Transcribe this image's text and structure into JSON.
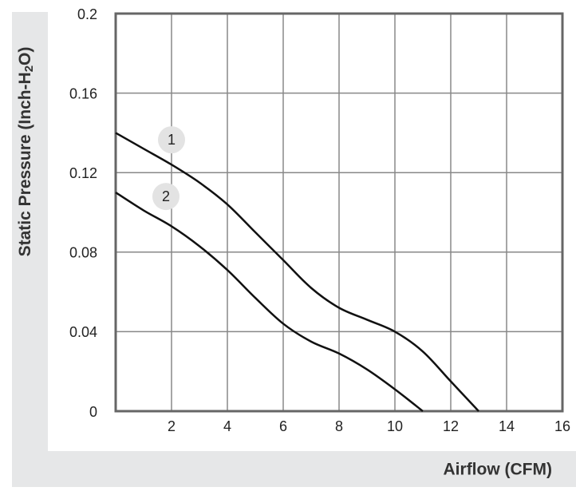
{
  "chart_data": {
    "type": "line",
    "x_label": "Airflow (CFM)",
    "y_label": {
      "before": "Static Pressure (Inch-H",
      "sub": "2",
      "after": "O)"
    },
    "xlim": [
      0,
      16
    ],
    "xticks": [
      2,
      4,
      6,
      8,
      10,
      12,
      14,
      16
    ],
    "ylim": [
      0,
      0.2
    ],
    "yticks": [
      0,
      0.04,
      0.08,
      0.12,
      0.16,
      0.2
    ],
    "grid": true,
    "series": [
      {
        "name": "1",
        "color": "#111111",
        "x": [
          0,
          1,
          2,
          3,
          4,
          5,
          6,
          7,
          8,
          9,
          10,
          11,
          12,
          13
        ],
        "values": [
          0.14,
          0.132,
          0.124,
          0.115,
          0.104,
          0.09,
          0.076,
          0.062,
          0.052,
          0.046,
          0.04,
          0.03,
          0.015,
          0
        ]
      },
      {
        "name": "2",
        "color": "#111111",
        "x": [
          0,
          1,
          2,
          3,
          4,
          5,
          6,
          7,
          8,
          9,
          10,
          11
        ],
        "values": [
          0.11,
          0.101,
          0.093,
          0.083,
          0.071,
          0.057,
          0.044,
          0.035,
          0.029,
          0.021,
          0.011,
          0
        ]
      }
    ]
  }
}
